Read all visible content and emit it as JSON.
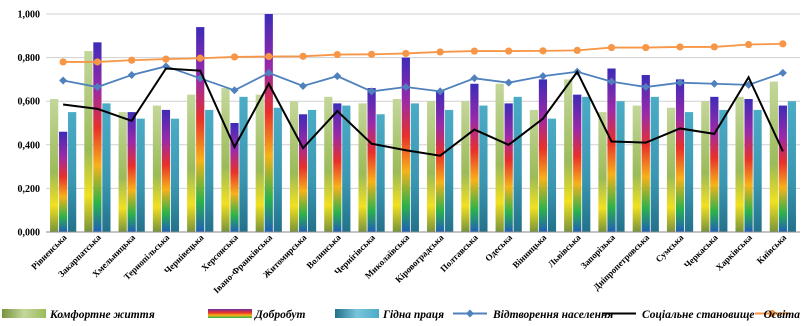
{
  "chart_data": {
    "type": "bar",
    "title": "",
    "xlabel": "",
    "ylabel": "",
    "ylim": [
      0,
      1.0
    ],
    "yticks": [
      "0,000",
      "0,200",
      "0,400",
      "0,600",
      "0,800",
      "1,000"
    ],
    "grid": true,
    "legend_position": "bottom",
    "categories": [
      "Рівненська",
      "Закарпатська",
      "Хмельницька",
      "Тернопільська",
      "Чернівецька",
      "Херсонська",
      "Івано-Франківська",
      "Житомирська",
      "Волинська",
      "Чернігівська",
      "Миколаївська",
      "Кіровоградська",
      "Полтавська",
      "Одеська",
      "Вінницька",
      "Львівська",
      "Запорізька",
      "Дніпропетровська",
      "Сумська",
      "Черкаська",
      "Харківська",
      "Київська"
    ],
    "bar_series": [
      {
        "name": "Комфортне життя",
        "color": "#9bbb59",
        "values": [
          0.61,
          0.83,
          0.55,
          0.58,
          0.63,
          0.66,
          0.63,
          0.6,
          0.62,
          0.59,
          0.61,
          0.6,
          0.6,
          0.68,
          0.56,
          0.7,
          0.55,
          0.58,
          0.57,
          0.6,
          0.62,
          0.69
        ]
      },
      {
        "name": "Добробут",
        "color": "#7030a0",
        "values": [
          0.46,
          0.87,
          0.55,
          0.56,
          0.94,
          0.5,
          1.01,
          0.54,
          0.59,
          0.66,
          0.8,
          0.65,
          0.68,
          0.59,
          0.7,
          0.63,
          0.75,
          0.72,
          0.7,
          0.62,
          0.61,
          0.58
        ]
      },
      {
        "name": "Гідна праця",
        "color": "#4bacc6",
        "values": [
          0.55,
          0.59,
          0.52,
          0.52,
          0.56,
          0.62,
          0.57,
          0.56,
          0.58,
          0.54,
          0.59,
          0.56,
          0.58,
          0.62,
          0.52,
          0.62,
          0.6,
          0.62,
          0.55,
          0.56,
          0.56,
          0.6
        ]
      }
    ],
    "line_series": [
      {
        "name": "Відтворення населення",
        "color": "#4f81bd",
        "values": [
          0.695,
          0.665,
          0.72,
          0.76,
          0.705,
          0.65,
          0.73,
          0.67,
          0.715,
          0.645,
          0.665,
          0.645,
          0.705,
          0.685,
          0.715,
          0.735,
          0.69,
          0.665,
          0.685,
          0.68,
          0.675,
          0.73
        ]
      },
      {
        "name": "Соціальне становище",
        "color": "#000000",
        "values": [
          0.585,
          0.565,
          0.51,
          0.75,
          0.74,
          0.39,
          0.68,
          0.385,
          0.555,
          0.405,
          0.375,
          0.35,
          0.47,
          0.4,
          0.52,
          0.735,
          0.415,
          0.41,
          0.475,
          0.45,
          0.71,
          0.37
        ]
      },
      {
        "name": "Освіта",
        "color": "#f79646",
        "values": [
          0.78,
          0.78,
          0.788,
          0.793,
          0.797,
          0.803,
          0.805,
          0.806,
          0.814,
          0.815,
          0.819,
          0.826,
          0.83,
          0.83,
          0.831,
          0.833,
          0.846,
          0.846,
          0.849,
          0.849,
          0.86,
          0.863
        ]
      }
    ]
  }
}
